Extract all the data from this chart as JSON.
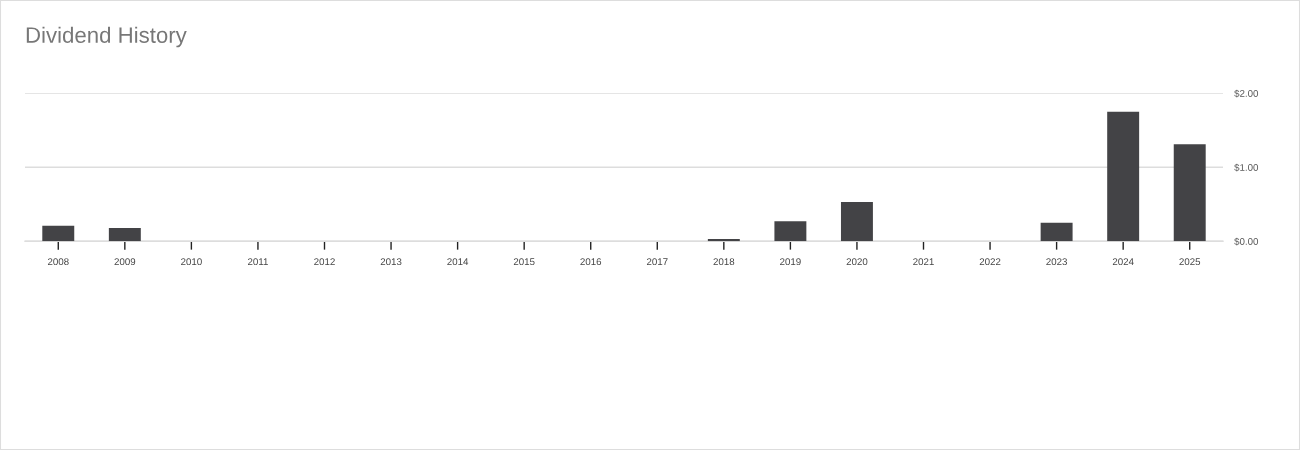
{
  "chart_data": {
    "type": "bar",
    "title": "Dividend History",
    "categories": [
      "2008",
      "2009",
      "2010",
      "2011",
      "2012",
      "2013",
      "2014",
      "2015",
      "2016",
      "2017",
      "2018",
      "2019",
      "2020",
      "2021",
      "2022",
      "2023",
      "2024",
      "2025"
    ],
    "values": [
      0.21,
      0.18,
      0,
      0,
      0,
      0,
      0,
      0,
      0,
      0,
      0.03,
      0.27,
      0.53,
      0,
      0,
      0.25,
      1.75,
      1.31
    ],
    "color": "#434346",
    "ylim": [
      0,
      2
    ],
    "yticks": [
      {
        "value": 0,
        "label": "$0.00"
      },
      {
        "value": 1,
        "label": "$1.00"
      },
      {
        "value": 2,
        "label": "$2.00"
      }
    ],
    "grid": "y"
  }
}
